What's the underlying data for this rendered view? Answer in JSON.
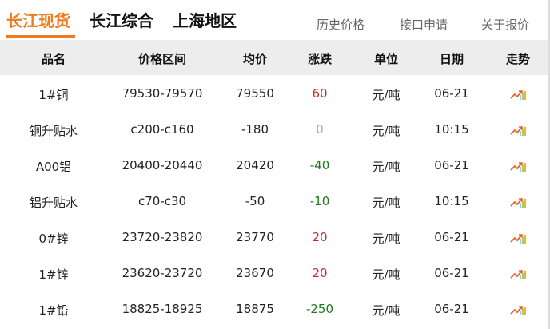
{
  "tabs": [
    "长江现货",
    "长江综合",
    "上海地区"
  ],
  "links": [
    "历史价格",
    "接口申请",
    "关于报价"
  ],
  "columns": [
    "品名",
    "价格区间",
    "均价",
    "涨跌",
    "单位",
    "日期",
    "走势"
  ],
  "colors": {
    "accent": "#f07a1e",
    "up": "#d0262b",
    "down": "#1e7a1e",
    "flat": "#aaaaaa"
  },
  "rows": [
    {
      "name": "1#铜",
      "range": "79530-79570",
      "avg": "79550",
      "change": "60",
      "dir": "up",
      "unit": "元/吨",
      "date": "06-21"
    },
    {
      "name": "铜升贴水",
      "range": "c200-c160",
      "avg": "-180",
      "change": "0",
      "dir": "flat",
      "unit": "元/吨",
      "date": "10:15"
    },
    {
      "name": "A00铝",
      "range": "20400-20440",
      "avg": "20420",
      "change": "-40",
      "dir": "down",
      "unit": "元/吨",
      "date": "06-21"
    },
    {
      "name": "铝升贴水",
      "range": "c70-c30",
      "avg": "-50",
      "change": "-10",
      "dir": "down",
      "unit": "元/吨",
      "date": "10:15"
    },
    {
      "name": "0#锌",
      "range": "23720-23820",
      "avg": "23770",
      "change": "20",
      "dir": "up",
      "unit": "元/吨",
      "date": "06-21"
    },
    {
      "name": "1#锌",
      "range": "23620-23720",
      "avg": "23670",
      "change": "20",
      "dir": "up",
      "unit": "元/吨",
      "date": "06-21"
    },
    {
      "name": "1#铅",
      "range": "18825-18925",
      "avg": "18875",
      "change": "-250",
      "dir": "down",
      "unit": "元/吨",
      "date": "06-21"
    }
  ]
}
